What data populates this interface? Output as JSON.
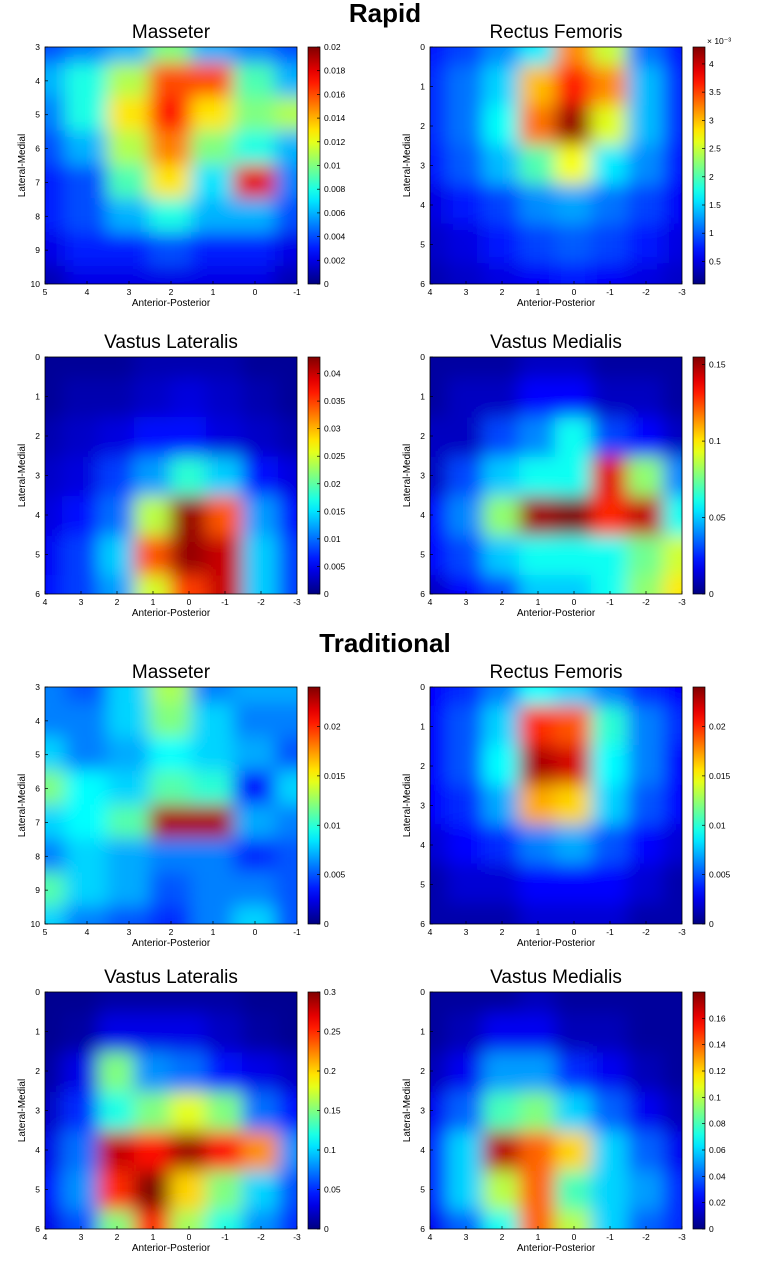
{
  "sections": [
    {
      "title": "Rapid"
    },
    {
      "title": "Traditional"
    }
  ],
  "colormap": "jet",
  "chart_data": [
    {
      "type": "heatmap",
      "section": "Rapid",
      "title": "Masseter",
      "xlabel": "Anterior-Posterior",
      "ylabel": "Lateral-Medial",
      "x": [
        5,
        4,
        3,
        2,
        1,
        0,
        -1
      ],
      "y": [
        3,
        4,
        5,
        6,
        7,
        8,
        9,
        10
      ],
      "xlim": [
        5,
        -1
      ],
      "ylim": [
        3,
        10
      ],
      "clim": [
        0,
        0.02
      ],
      "colorbar_ticks": [
        0,
        0.002,
        0.004,
        0.006,
        0.008,
        0.01,
        0.012,
        0.014,
        0.016,
        0.018,
        0.02
      ],
      "colorbar_labels": [
        "0",
        "0.002",
        "0.004",
        "0.006",
        "0.008",
        "0.01",
        "0.012",
        "0.014",
        "0.016",
        "0.018",
        "0.02"
      ],
      "colorbar_exponent": "",
      "values": [
        [
          0.004,
          0.005,
          0.006,
          0.01,
          0.006,
          0.005,
          0.004
        ],
        [
          0.006,
          0.008,
          0.011,
          0.016,
          0.016,
          0.009,
          0.006
        ],
        [
          0.005,
          0.008,
          0.013,
          0.017,
          0.013,
          0.01,
          0.011
        ],
        [
          0.004,
          0.006,
          0.011,
          0.015,
          0.01,
          0.008,
          0.006
        ],
        [
          0.003,
          0.004,
          0.009,
          0.013,
          0.007,
          0.018,
          0.005
        ],
        [
          0.003,
          0.004,
          0.006,
          0.008,
          0.006,
          0.006,
          0.004
        ],
        [
          0.002,
          0.003,
          0.003,
          0.004,
          0.003,
          0.003,
          0.002
        ],
        [
          0.001,
          0.002,
          0.002,
          0.002,
          0.002,
          0.002,
          0.001
        ]
      ]
    },
    {
      "type": "heatmap",
      "section": "Rapid",
      "title": "Rectus Femoris",
      "xlabel": "Anterior-Posterior",
      "ylabel": "Lateral-Medial",
      "x": [
        4,
        3,
        2,
        1,
        0,
        -1,
        -2,
        -3
      ],
      "y": [
        0,
        1,
        2,
        3,
        4,
        5,
        6
      ],
      "xlim": [
        4,
        -3
      ],
      "ylim": [
        0,
        6
      ],
      "clim": [
        0.0001,
        0.0043
      ],
      "colorbar_ticks": [
        0.0005,
        0.001,
        0.0015,
        0.002,
        0.0025,
        0.003,
        0.0035,
        0.004
      ],
      "colorbar_labels": [
        "0.5",
        "1",
        "1.5",
        "2",
        "2.5",
        "3",
        "3.5",
        "4"
      ],
      "colorbar_exponent": "× 10⁻³",
      "values": [
        [
          0.0007,
          0.0009,
          0.0012,
          0.0016,
          0.0032,
          0.0025,
          0.0011,
          0.0007
        ],
        [
          0.0008,
          0.0011,
          0.0015,
          0.003,
          0.0037,
          0.0032,
          0.0014,
          0.0008
        ],
        [
          0.0008,
          0.0011,
          0.0017,
          0.0033,
          0.0042,
          0.0026,
          0.0014,
          0.0008
        ],
        [
          0.0007,
          0.001,
          0.0014,
          0.002,
          0.0027,
          0.0016,
          0.0012,
          0.0007
        ],
        [
          0.0005,
          0.0007,
          0.0009,
          0.0012,
          0.0013,
          0.0011,
          0.0009,
          0.0006
        ],
        [
          0.0004,
          0.0005,
          0.0007,
          0.0009,
          0.001,
          0.0009,
          0.0007,
          0.0005
        ],
        [
          0.0003,
          0.0004,
          0.0005,
          0.0006,
          0.0007,
          0.0006,
          0.0005,
          0.0004
        ]
      ]
    },
    {
      "type": "heatmap",
      "section": "Rapid",
      "title": "Vastus Lateralis",
      "xlabel": "Anterior-Posterior",
      "ylabel": "Lateral-Medial",
      "x": [
        4,
        3,
        2,
        1,
        0,
        -1,
        -2,
        -3
      ],
      "y": [
        6,
        5,
        4,
        3,
        2,
        1,
        0
      ],
      "xlim": [
        4,
        -3
      ],
      "ylim": [
        0,
        6
      ],
      "clim": [
        0,
        0.043
      ],
      "colorbar_ticks": [
        0,
        0.005,
        0.01,
        0.015,
        0.02,
        0.025,
        0.03,
        0.035,
        0.04
      ],
      "colorbar_labels": [
        "0",
        "0.005",
        "0.01",
        "0.015",
        "0.02",
        "0.025",
        "0.03",
        "0.035",
        "0.04"
      ],
      "colorbar_exponent": "",
      "values": [
        [
          0.006,
          0.008,
          0.012,
          0.025,
          0.035,
          0.04,
          0.014,
          0.008
        ],
        [
          0.005,
          0.008,
          0.014,
          0.034,
          0.042,
          0.04,
          0.014,
          0.008
        ],
        [
          0.004,
          0.006,
          0.01,
          0.024,
          0.042,
          0.034,
          0.012,
          0.006
        ],
        [
          0.003,
          0.004,
          0.008,
          0.012,
          0.018,
          0.014,
          0.006,
          0.004
        ],
        [
          0.002,
          0.003,
          0.004,
          0.006,
          0.006,
          0.004,
          0.003,
          0.002
        ],
        [
          0.001,
          0.002,
          0.002,
          0.003,
          0.004,
          0.003,
          0.002,
          0.001
        ],
        [
          0.001,
          0.001,
          0.001,
          0.002,
          0.002,
          0.002,
          0.001,
          0.001
        ]
      ]
    },
    {
      "type": "heatmap",
      "section": "Rapid",
      "title": "Vastus Medialis",
      "xlabel": "Anterior-Posterior",
      "ylabel": "Lateral-Medial",
      "x": [
        4,
        3,
        2,
        1,
        0,
        -1,
        -2,
        -3
      ],
      "y": [
        6,
        5,
        4,
        3,
        2,
        1,
        0
      ],
      "xlim": [
        4,
        -3
      ],
      "ylim": [
        0,
        6
      ],
      "clim": [
        0,
        0.155
      ],
      "colorbar_ticks": [
        0,
        0.05,
        0.1,
        0.15
      ],
      "colorbar_labels": [
        "0",
        "0.05",
        "0.1",
        "0.15"
      ],
      "colorbar_exponent": "",
      "values": [
        [
          0.01,
          0.02,
          0.03,
          0.05,
          0.05,
          0.06,
          0.08,
          0.1
        ],
        [
          0.02,
          0.03,
          0.05,
          0.06,
          0.06,
          0.06,
          0.075,
          0.09
        ],
        [
          0.02,
          0.04,
          0.08,
          0.15,
          0.155,
          0.13,
          0.145,
          0.06
        ],
        [
          0.01,
          0.03,
          0.05,
          0.06,
          0.06,
          0.14,
          0.08,
          0.04
        ],
        [
          0.01,
          0.01,
          0.03,
          0.04,
          0.06,
          0.03,
          0.02,
          0.01
        ],
        [
          0.005,
          0.01,
          0.01,
          0.02,
          0.02,
          0.01,
          0.01,
          0.005
        ],
        [
          0.005,
          0.005,
          0.005,
          0.01,
          0.01,
          0.005,
          0.005,
          0.005
        ]
      ]
    },
    {
      "type": "heatmap",
      "section": "Traditional",
      "title": "Masseter",
      "xlabel": "Anterior-Posterior",
      "ylabel": "Lateral-Medial",
      "x": [
        5,
        4,
        3,
        2,
        1,
        0,
        -1
      ],
      "y": [
        3,
        4,
        5,
        6,
        7,
        8,
        9,
        10
      ],
      "xlim": [
        5,
        -1
      ],
      "ylim": [
        3,
        10
      ],
      "clim": [
        0,
        0.024
      ],
      "colorbar_ticks": [
        0,
        0.005,
        0.01,
        0.015,
        0.02
      ],
      "colorbar_labels": [
        "0",
        "0.005",
        "0.01",
        "0.015",
        "0.02"
      ],
      "colorbar_exponent": "",
      "values": [
        [
          0.006,
          0.005,
          0.008,
          0.013,
          0.006,
          0.007,
          0.007
        ],
        [
          0.006,
          0.006,
          0.008,
          0.012,
          0.008,
          0.006,
          0.006
        ],
        [
          0.008,
          0.006,
          0.007,
          0.009,
          0.008,
          0.007,
          0.005
        ],
        [
          0.012,
          0.009,
          0.008,
          0.011,
          0.01,
          0.003,
          0.008
        ],
        [
          0.008,
          0.009,
          0.011,
          0.023,
          0.023,
          0.007,
          0.006
        ],
        [
          0.006,
          0.008,
          0.007,
          0.006,
          0.006,
          0.004,
          0.005
        ],
        [
          0.011,
          0.008,
          0.007,
          0.005,
          0.006,
          0.006,
          0.005
        ],
        [
          0.008,
          0.006,
          0.005,
          0.004,
          0.006,
          0.008,
          0.005
        ]
      ]
    },
    {
      "type": "heatmap",
      "section": "Traditional",
      "title": "Rectus Femoris",
      "xlabel": "Anterior-Posterior",
      "ylabel": "Lateral-Medial",
      "x": [
        4,
        3,
        2,
        1,
        0,
        -1,
        -2,
        -3
      ],
      "y": [
        0,
        1,
        2,
        3,
        4,
        5,
        6
      ],
      "xlim": [
        4,
        -3
      ],
      "ylim": [
        0,
        6
      ],
      "clim": [
        0,
        0.024
      ],
      "colorbar_ticks": [
        0,
        0.005,
        0.01,
        0.015,
        0.02
      ],
      "colorbar_labels": [
        "0",
        "0.005",
        "0.01",
        "0.015",
        "0.02"
      ],
      "colorbar_exponent": "",
      "values": [
        [
          0.003,
          0.004,
          0.006,
          0.009,
          0.008,
          0.006,
          0.004,
          0.003
        ],
        [
          0.003,
          0.005,
          0.008,
          0.02,
          0.019,
          0.01,
          0.006,
          0.004
        ],
        [
          0.003,
          0.005,
          0.009,
          0.023,
          0.022,
          0.009,
          0.006,
          0.003
        ],
        [
          0.003,
          0.004,
          0.007,
          0.017,
          0.016,
          0.008,
          0.005,
          0.003
        ],
        [
          0.002,
          0.003,
          0.004,
          0.006,
          0.007,
          0.005,
          0.003,
          0.002
        ],
        [
          0.001,
          0.002,
          0.002,
          0.003,
          0.003,
          0.003,
          0.002,
          0.001
        ],
        [
          0.001,
          0.001,
          0.001,
          0.002,
          0.002,
          0.002,
          0.001,
          0.001
        ]
      ]
    },
    {
      "type": "heatmap",
      "section": "Traditional",
      "title": "Vastus Lateralis",
      "xlabel": "Anterior-Posterior",
      "ylabel": "Lateral-Medial",
      "x": [
        4,
        3,
        2,
        1,
        0,
        -1,
        -2,
        -3
      ],
      "y": [
        6,
        5,
        4,
        3,
        2,
        1,
        0
      ],
      "xlim": [
        4,
        -3
      ],
      "ylim": [
        0,
        6
      ],
      "clim": [
        0,
        0.3
      ],
      "colorbar_ticks": [
        0,
        0.05,
        0.1,
        0.15,
        0.2,
        0.25,
        0.3
      ],
      "colorbar_labels": [
        "0",
        "0.05",
        "0.1",
        "0.15",
        "0.2",
        "0.25",
        "0.3"
      ],
      "colorbar_exponent": "",
      "values": [
        [
          0.03,
          0.06,
          0.15,
          0.25,
          0.16,
          0.12,
          0.08,
          0.05
        ],
        [
          0.04,
          0.08,
          0.25,
          0.3,
          0.2,
          0.15,
          0.1,
          0.06
        ],
        [
          0.03,
          0.07,
          0.28,
          0.26,
          0.29,
          0.26,
          0.22,
          0.08
        ],
        [
          0.02,
          0.05,
          0.12,
          0.15,
          0.18,
          0.15,
          0.07,
          0.04
        ],
        [
          0.01,
          0.03,
          0.15,
          0.08,
          0.07,
          0.04,
          0.03,
          0.02
        ],
        [
          0.005,
          0.01,
          0.03,
          0.03,
          0.03,
          0.02,
          0.01,
          0.005
        ],
        [
          0.005,
          0.005,
          0.01,
          0.01,
          0.01,
          0.01,
          0.005,
          0.005
        ]
      ]
    },
    {
      "type": "heatmap",
      "section": "Traditional",
      "title": "Vastus Medialis",
      "xlabel": "Anterior-Posterior",
      "ylabel": "Lateral-Medial",
      "x": [
        4,
        3,
        2,
        1,
        0,
        -1,
        -2,
        -3
      ],
      "y": [
        6,
        5,
        4,
        3,
        2,
        1,
        0
      ],
      "xlim": [
        4,
        -3
      ],
      "ylim": [
        0,
        6
      ],
      "clim": [
        0,
        0.18
      ],
      "colorbar_ticks": [
        0,
        0.02,
        0.04,
        0.06,
        0.08,
        0.1,
        0.12,
        0.14,
        0.16
      ],
      "colorbar_labels": [
        "0",
        "0.02",
        "0.04",
        "0.06",
        "0.08",
        "0.1",
        "0.12",
        "0.14",
        "0.16"
      ],
      "colorbar_exponent": "",
      "values": [
        [
          0.02,
          0.04,
          0.07,
          0.14,
          0.1,
          0.06,
          0.04,
          0.03
        ],
        [
          0.03,
          0.06,
          0.1,
          0.14,
          0.08,
          0.06,
          0.05,
          0.03
        ],
        [
          0.03,
          0.06,
          0.17,
          0.14,
          0.12,
          0.06,
          0.04,
          0.02
        ],
        [
          0.02,
          0.04,
          0.08,
          0.09,
          0.06,
          0.04,
          0.02,
          0.01
        ],
        [
          0.01,
          0.02,
          0.05,
          0.05,
          0.03,
          0.02,
          0.01,
          0.005
        ],
        [
          0.005,
          0.01,
          0.02,
          0.02,
          0.01,
          0.01,
          0.005,
          0.005
        ],
        [
          0.005,
          0.005,
          0.005,
          0.01,
          0.005,
          0.005,
          0.005,
          0.005
        ]
      ]
    }
  ]
}
